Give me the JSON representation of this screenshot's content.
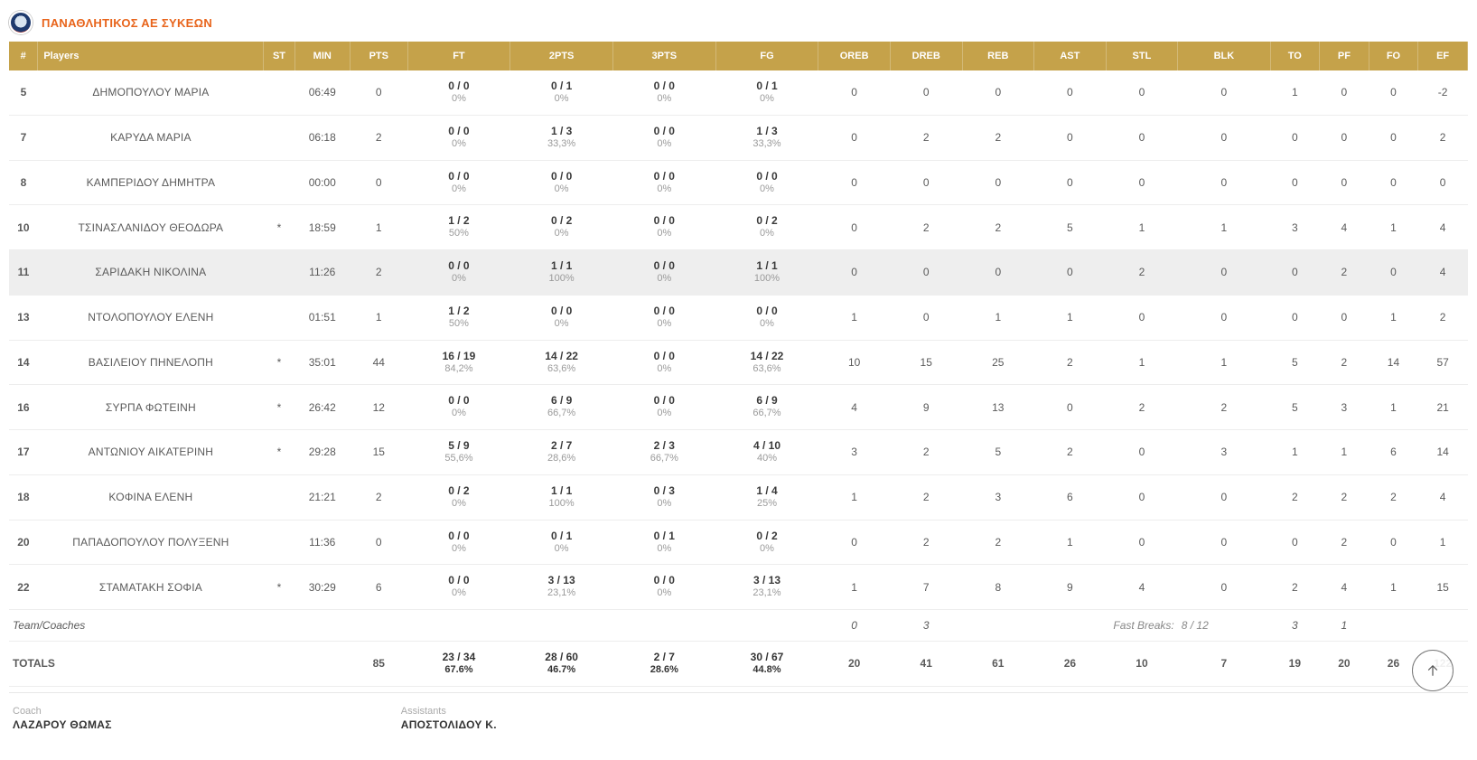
{
  "team": {
    "name": "ΠΑΝΑΘΛΗΤΙΚΟΣ ΑΕ ΣΥΚΕΩΝ"
  },
  "headers": {
    "num": "#",
    "players": "Players",
    "st": "ST",
    "min": "MIN",
    "pts": "PTS",
    "ft": "FT",
    "p2": "2PTS",
    "p3": "3PTS",
    "fg": "FG",
    "oreb": "OREB",
    "dreb": "DREB",
    "reb": "REB",
    "ast": "AST",
    "stl": "STL",
    "blk": "BLK",
    "to": "TO",
    "pf": "PF",
    "fo": "FO",
    "ef": "EF"
  },
  "rows": [
    {
      "hl": false,
      "num": "5",
      "name": "ΔΗΜΟΠΟΥΛΟΥ ΜΑΡΙΑ",
      "st": "",
      "min": "06:49",
      "pts": "0",
      "ft": {
        "v": "0 / 0",
        "p": "0%"
      },
      "p2": {
        "v": "0 / 1",
        "p": "0%"
      },
      "p3": {
        "v": "0 / 0",
        "p": "0%"
      },
      "fg": {
        "v": "0 / 1",
        "p": "0%"
      },
      "oreb": "0",
      "dreb": "0",
      "reb": "0",
      "ast": "0",
      "stl": "0",
      "blk": "0",
      "to": "1",
      "pf": "0",
      "fo": "0",
      "ef": "-2"
    },
    {
      "hl": false,
      "num": "7",
      "name": "ΚΑΡΥΔΑ ΜΑΡΙΑ",
      "st": "",
      "min": "06:18",
      "pts": "2",
      "ft": {
        "v": "0 / 0",
        "p": "0%"
      },
      "p2": {
        "v": "1 / 3",
        "p": "33,3%"
      },
      "p3": {
        "v": "0 / 0",
        "p": "0%"
      },
      "fg": {
        "v": "1 / 3",
        "p": "33,3%"
      },
      "oreb": "0",
      "dreb": "2",
      "reb": "2",
      "ast": "0",
      "stl": "0",
      "blk": "0",
      "to": "0",
      "pf": "0",
      "fo": "0",
      "ef": "2"
    },
    {
      "hl": false,
      "num": "8",
      "name": "ΚΑΜΠΕΡΙΔΟΥ ΔΗΜΗΤΡΑ",
      "st": "",
      "min": "00:00",
      "pts": "0",
      "ft": {
        "v": "0 / 0",
        "p": "0%"
      },
      "p2": {
        "v": "0 / 0",
        "p": "0%"
      },
      "p3": {
        "v": "0 / 0",
        "p": "0%"
      },
      "fg": {
        "v": "0 / 0",
        "p": "0%"
      },
      "oreb": "0",
      "dreb": "0",
      "reb": "0",
      "ast": "0",
      "stl": "0",
      "blk": "0",
      "to": "0",
      "pf": "0",
      "fo": "0",
      "ef": "0"
    },
    {
      "hl": false,
      "num": "10",
      "name": "ΤΣΙΝΑΣΛΑΝΙΔΟΥ ΘΕΟΔΩΡΑ",
      "st": "*",
      "min": "18:59",
      "pts": "1",
      "ft": {
        "v": "1 / 2",
        "p": "50%"
      },
      "p2": {
        "v": "0 / 2",
        "p": "0%"
      },
      "p3": {
        "v": "0 / 0",
        "p": "0%"
      },
      "fg": {
        "v": "0 / 2",
        "p": "0%"
      },
      "oreb": "0",
      "dreb": "2",
      "reb": "2",
      "ast": "5",
      "stl": "1",
      "blk": "1",
      "to": "3",
      "pf": "4",
      "fo": "1",
      "ef": "4"
    },
    {
      "hl": true,
      "num": "11",
      "name": "ΣΑΡΙΔΑΚΗ ΝΙΚΟΛΙΝΑ",
      "st": "",
      "min": "11:26",
      "pts": "2",
      "ft": {
        "v": "0 / 0",
        "p": "0%"
      },
      "p2": {
        "v": "1 / 1",
        "p": "100%"
      },
      "p3": {
        "v": "0 / 0",
        "p": "0%"
      },
      "fg": {
        "v": "1 / 1",
        "p": "100%"
      },
      "oreb": "0",
      "dreb": "0",
      "reb": "0",
      "ast": "0",
      "stl": "2",
      "blk": "0",
      "to": "0",
      "pf": "2",
      "fo": "0",
      "ef": "4"
    },
    {
      "hl": false,
      "num": "13",
      "name": "ΝΤΟΛΟΠΟΥΛΟΥ ΕΛΕΝΗ",
      "st": "",
      "min": "01:51",
      "pts": "1",
      "ft": {
        "v": "1 / 2",
        "p": "50%"
      },
      "p2": {
        "v": "0 / 0",
        "p": "0%"
      },
      "p3": {
        "v": "0 / 0",
        "p": "0%"
      },
      "fg": {
        "v": "0 / 0",
        "p": "0%"
      },
      "oreb": "1",
      "dreb": "0",
      "reb": "1",
      "ast": "1",
      "stl": "0",
      "blk": "0",
      "to": "0",
      "pf": "0",
      "fo": "1",
      "ef": "2"
    },
    {
      "hl": false,
      "num": "14",
      "name": "ΒΑΣΙΛΕΙΟΥ ΠΗΝΕΛΟΠΗ",
      "st": "*",
      "min": "35:01",
      "pts": "44",
      "ft": {
        "v": "16 / 19",
        "p": "84,2%"
      },
      "p2": {
        "v": "14 / 22",
        "p": "63,6%"
      },
      "p3": {
        "v": "0 / 0",
        "p": "0%"
      },
      "fg": {
        "v": "14 / 22",
        "p": "63,6%"
      },
      "oreb": "10",
      "dreb": "15",
      "reb": "25",
      "ast": "2",
      "stl": "1",
      "blk": "1",
      "to": "5",
      "pf": "2",
      "fo": "14",
      "ef": "57"
    },
    {
      "hl": false,
      "num": "16",
      "name": "ΣΥΡΠΑ ΦΩΤΕΙΝΗ",
      "st": "*",
      "min": "26:42",
      "pts": "12",
      "ft": {
        "v": "0 / 0",
        "p": "0%"
      },
      "p2": {
        "v": "6 / 9",
        "p": "66,7%"
      },
      "p3": {
        "v": "0 / 0",
        "p": "0%"
      },
      "fg": {
        "v": "6 / 9",
        "p": "66,7%"
      },
      "oreb": "4",
      "dreb": "9",
      "reb": "13",
      "ast": "0",
      "stl": "2",
      "blk": "2",
      "to": "5",
      "pf": "3",
      "fo": "1",
      "ef": "21"
    },
    {
      "hl": false,
      "num": "17",
      "name": "ΑΝΤΩΝΙΟΥ ΑΙΚΑΤΕΡΙΝΗ",
      "st": "*",
      "min": "29:28",
      "pts": "15",
      "ft": {
        "v": "5 / 9",
        "p": "55,6%"
      },
      "p2": {
        "v": "2 / 7",
        "p": "28,6%"
      },
      "p3": {
        "v": "2 / 3",
        "p": "66,7%"
      },
      "fg": {
        "v": "4 / 10",
        "p": "40%"
      },
      "oreb": "3",
      "dreb": "2",
      "reb": "5",
      "ast": "2",
      "stl": "0",
      "blk": "3",
      "to": "1",
      "pf": "1",
      "fo": "6",
      "ef": "14"
    },
    {
      "hl": false,
      "num": "18",
      "name": "ΚΟΦΙΝΑ ΕΛΕΝΗ",
      "st": "",
      "min": "21:21",
      "pts": "2",
      "ft": {
        "v": "0 / 2",
        "p": "0%"
      },
      "p2": {
        "v": "1 / 1",
        "p": "100%"
      },
      "p3": {
        "v": "0 / 3",
        "p": "0%"
      },
      "fg": {
        "v": "1 / 4",
        "p": "25%"
      },
      "oreb": "1",
      "dreb": "2",
      "reb": "3",
      "ast": "6",
      "stl": "0",
      "blk": "0",
      "to": "2",
      "pf": "2",
      "fo": "2",
      "ef": "4"
    },
    {
      "hl": false,
      "num": "20",
      "name": "ΠΑΠΑΔΟΠΟΥΛΟΥ ΠΟΛΥΞΕΝΗ",
      "st": "",
      "min": "11:36",
      "pts": "0",
      "ft": {
        "v": "0 / 0",
        "p": "0%"
      },
      "p2": {
        "v": "0 / 1",
        "p": "0%"
      },
      "p3": {
        "v": "0 / 1",
        "p": "0%"
      },
      "fg": {
        "v": "0 / 2",
        "p": "0%"
      },
      "oreb": "0",
      "dreb": "2",
      "reb": "2",
      "ast": "1",
      "stl": "0",
      "blk": "0",
      "to": "0",
      "pf": "2",
      "fo": "0",
      "ef": "1"
    },
    {
      "hl": false,
      "num": "22",
      "name": "ΣΤΑΜΑΤΑΚΗ ΣΟΦΙΑ",
      "st": "*",
      "min": "30:29",
      "pts": "6",
      "ft": {
        "v": "0 / 0",
        "p": "0%"
      },
      "p2": {
        "v": "3 / 13",
        "p": "23,1%"
      },
      "p3": {
        "v": "0 / 0",
        "p": "0%"
      },
      "fg": {
        "v": "3 / 13",
        "p": "23,1%"
      },
      "oreb": "1",
      "dreb": "7",
      "reb": "8",
      "ast": "9",
      "stl": "4",
      "blk": "0",
      "to": "2",
      "pf": "4",
      "fo": "1",
      "ef": "15"
    }
  ],
  "teamRow": {
    "label": "Team/Coaches",
    "oreb": "0",
    "dreb": "3",
    "fastBreaksLabel": "Fast Breaks:",
    "fastBreaksValue": "8 / 12",
    "to": "3",
    "pf": "1"
  },
  "totals": {
    "label": "TOTALS",
    "pts": "85",
    "ft": {
      "v": "23 / 34",
      "p": "67.6%"
    },
    "p2": {
      "v": "28 / 60",
      "p": "46.7%"
    },
    "p3": {
      "v": "2 / 7",
      "p": "28.6%"
    },
    "fg": {
      "v": "30 / 67",
      "p": "44.8%"
    },
    "oreb": "20",
    "dreb": "41",
    "reb": "61",
    "ast": "26",
    "stl": "10",
    "blk": "7",
    "to": "19",
    "pf": "20",
    "fo": "26",
    "ef": "122"
  },
  "footer": {
    "coachLabel": "Coach",
    "coachName": "ΛΑΖΑΡΟΥ ΘΩΜΑΣ",
    "assistLabel": "Assistants",
    "assistName": "ΑΠΟΣΤΟΛΙΔΟΥ Κ."
  }
}
